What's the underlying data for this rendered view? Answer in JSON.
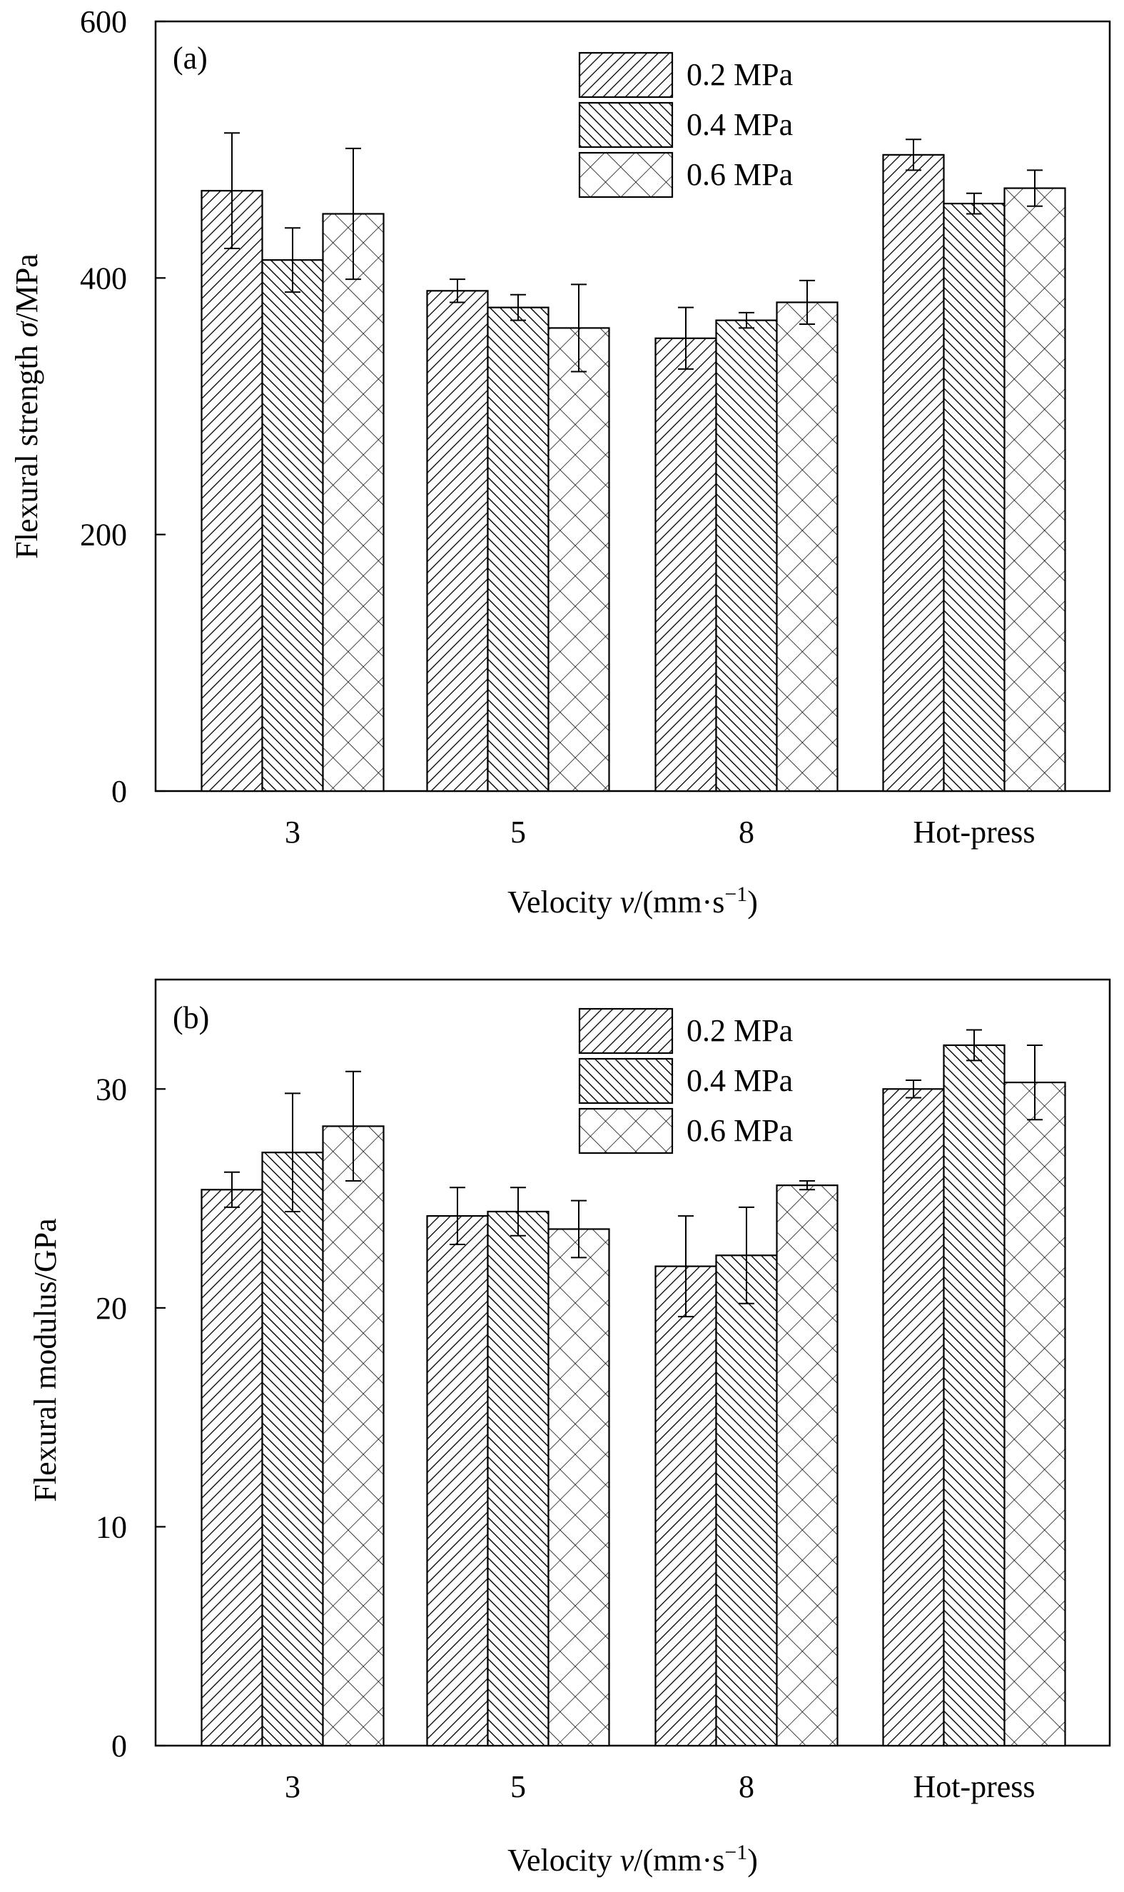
{
  "chart_data": [
    {
      "type": "bar",
      "panel_label": "(a)",
      "categories": [
        "3",
        "5",
        "8",
        "Hot-press"
      ],
      "series": [
        {
          "name": "0.2 MPa",
          "pattern": "diag-right",
          "values": [
            468,
            390,
            353,
            496
          ],
          "errors": [
            45,
            9,
            24,
            12
          ]
        },
        {
          "name": "0.4 MPa",
          "pattern": "diag-left",
          "values": [
            414,
            377,
            367,
            458
          ],
          "errors": [
            25,
            10,
            6,
            8
          ]
        },
        {
          "name": "0.6 MPa",
          "pattern": "cross",
          "values": [
            450,
            361,
            381,
            470
          ],
          "errors": [
            51,
            34,
            17,
            14
          ]
        }
      ],
      "ylabel_prefix": "Flexural strength ",
      "ylabel_symbol": "σ",
      "ylabel_suffix": "/MPa",
      "xlabel_prefix": "Velocity ",
      "xlabel_symbol": "v",
      "xlabel_suffix": "/(mm·s",
      "xlabel_sup": "−1",
      "xlabel_close": ")",
      "ylim": [
        0,
        600
      ],
      "yticks": [
        0,
        200,
        400,
        600
      ],
      "grid": false,
      "legend_position": "top-center"
    },
    {
      "type": "bar",
      "panel_label": "(b)",
      "categories": [
        "3",
        "5",
        "8",
        "Hot-press"
      ],
      "series": [
        {
          "name": "0.2 MPa",
          "pattern": "diag-right",
          "values": [
            25.4,
            24.2,
            21.9,
            30.0
          ],
          "errors": [
            0.8,
            1.3,
            2.3,
            0.4
          ]
        },
        {
          "name": "0.4 MPa",
          "pattern": "diag-left",
          "values": [
            27.1,
            24.4,
            22.4,
            32.0
          ],
          "errors": [
            2.7,
            1.1,
            2.2,
            0.7
          ]
        },
        {
          "name": "0.6 MPa",
          "pattern": "cross",
          "values": [
            28.3,
            23.6,
            25.6,
            30.3
          ],
          "errors": [
            2.5,
            1.3,
            0.2,
            1.7
          ]
        }
      ],
      "ylabel_prefix": "Flexural modulus/GPa",
      "ylabel_symbol": "",
      "ylabel_suffix": "",
      "xlabel_prefix": "Velocity ",
      "xlabel_symbol": "v",
      "xlabel_suffix": "/(mm·s",
      "xlabel_sup": "−1",
      "xlabel_close": ")",
      "ylim": [
        0,
        35
      ],
      "yticks": [
        0,
        10,
        20,
        30
      ],
      "grid": false,
      "legend_position": "top-center"
    }
  ]
}
